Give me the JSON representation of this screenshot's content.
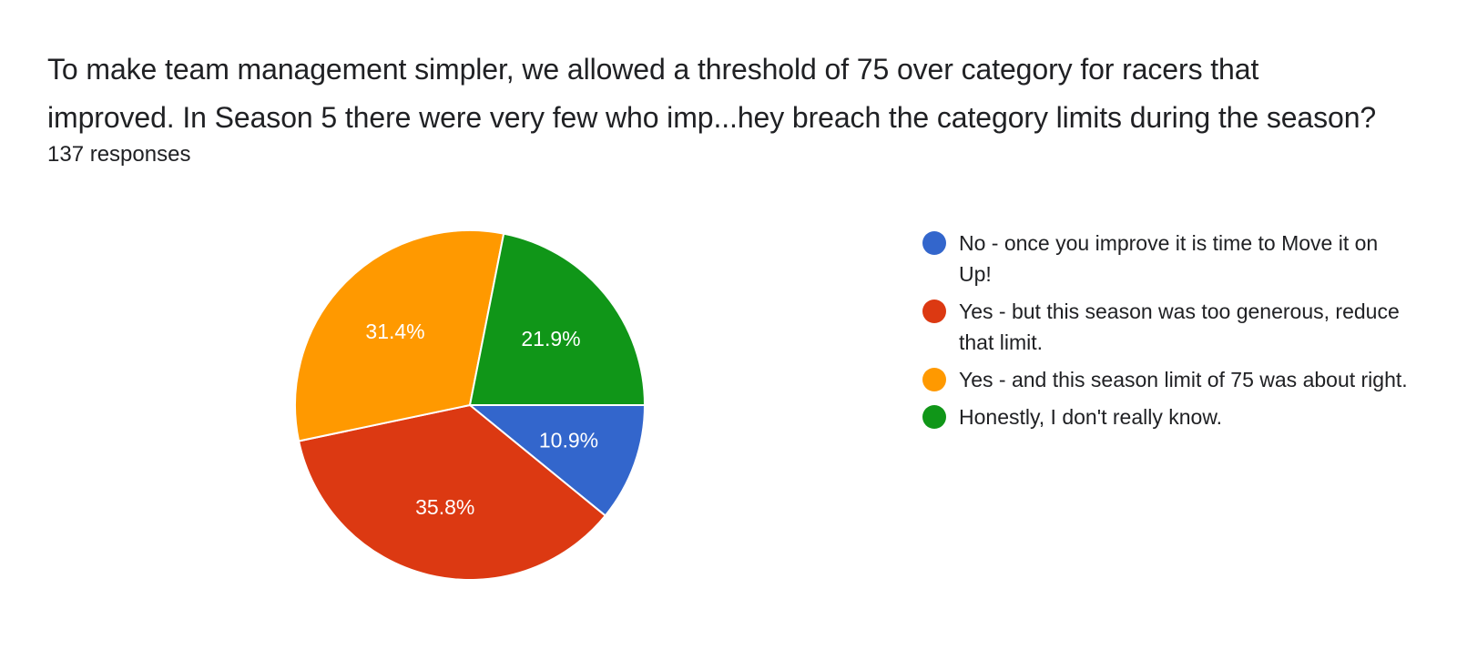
{
  "question": {
    "line1": "To make team management simpler, we allowed a threshold of 75 over category for racers that",
    "line2": "improved.  In Season 5 there were very few who imp...hey breach the category limits during the season?",
    "responses": "137 responses"
  },
  "chart_data": {
    "type": "pie",
    "title": "To make team management simpler, we allowed a threshold of 75 over category for racers that improved.  In Season 5 there were very few who imp...hey breach the category limits during the season?",
    "slices": [
      {
        "label": "No - once you improve it is time to Move it on Up!",
        "value": 10.9,
        "display": "10.9%",
        "color": "#3366cc"
      },
      {
        "label": "Yes - but this season was too generous, reduce that limit.",
        "value": 35.8,
        "display": "35.8%",
        "color": "#dc3912"
      },
      {
        "label": "Yes - and this season limit of 75 was about right.",
        "value": 31.4,
        "display": "31.4%",
        "color": "#ff9900"
      },
      {
        "label": "Honestly, I don't really know.",
        "value": 21.9,
        "display": "21.9%",
        "color": "#109618"
      }
    ],
    "start_angle": "3 o'clock, clockwise",
    "legend_position": "right"
  },
  "legend": {
    "items": [
      {
        "label": "No - once you improve it is time to Move it on Up!",
        "color": "#3366cc"
      },
      {
        "label": "Yes - but this season was too generous, reduce that limit.",
        "color": "#dc3912"
      },
      {
        "label": "Yes - and this season limit of 75 was about right.",
        "color": "#ff9900"
      },
      {
        "label": "Honestly, I don't really know.",
        "color": "#109618"
      }
    ]
  }
}
